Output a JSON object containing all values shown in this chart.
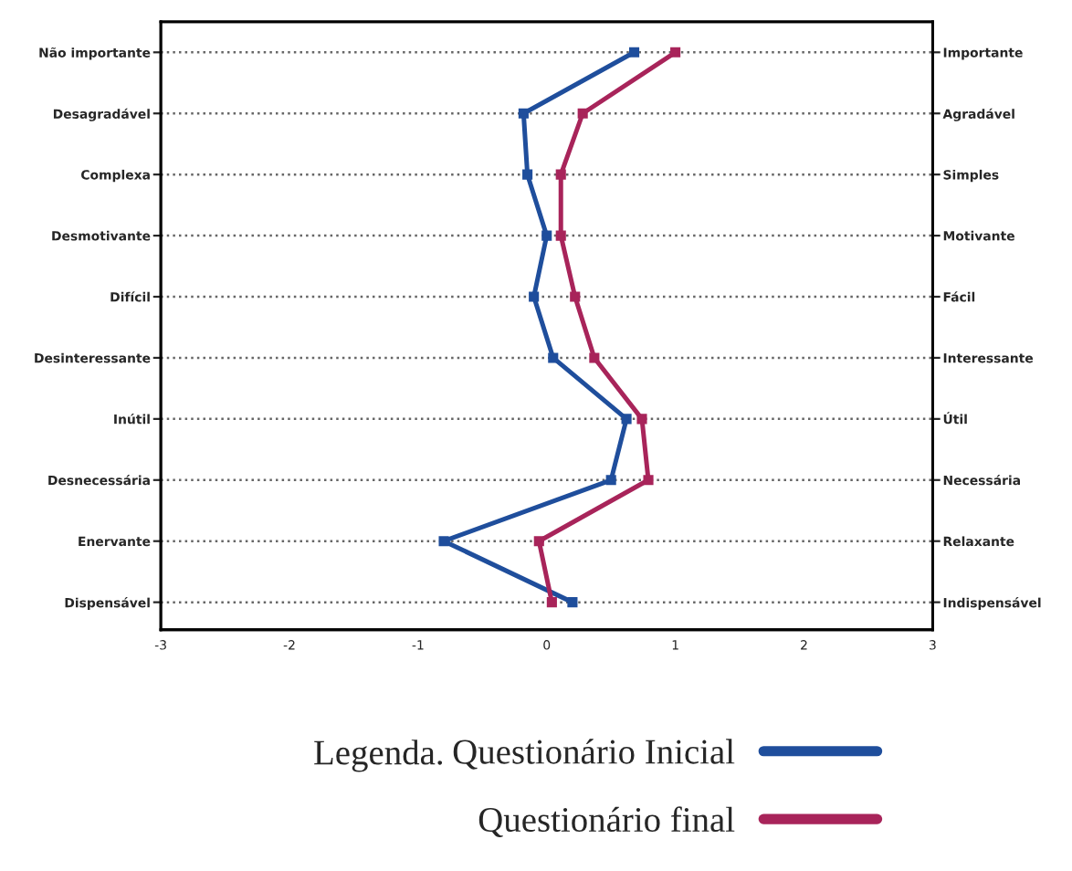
{
  "chart_data": {
    "type": "line",
    "orientation": "horizontal",
    "categories": [
      "Não importante",
      "Desagradável",
      "Complexa",
      "Desmotivante",
      "Difícil",
      "Desinteressante",
      "Inútil",
      "Desnecessária",
      "Enervante",
      "Dispensável"
    ],
    "y2_categories": [
      "Importante",
      "Agradável",
      "Simples",
      "Motivante",
      "Fácil",
      "Interessante",
      "Útil",
      "Necessária",
      "Relaxante",
      "Indispensável"
    ],
    "series": [
      {
        "name": "Questionário Inicial",
        "color": "#1f4e9c",
        "values": [
          0.68,
          -0.18,
          -0.15,
          0.0,
          -0.1,
          0.05,
          0.62,
          0.5,
          -0.8,
          0.2
        ]
      },
      {
        "name": "Questionário final",
        "color": "#a8245a",
        "values": [
          1.0,
          0.28,
          0.11,
          0.11,
          0.22,
          0.37,
          0.74,
          0.79,
          -0.06,
          0.04
        ]
      }
    ],
    "xlim": [
      -3,
      3
    ],
    "xticks": [
      -3,
      -2,
      -1,
      0,
      1,
      2,
      3
    ],
    "grid": "y",
    "marker": "square",
    "line_style": "solid",
    "legend": "bottom",
    "legend_title": "Legenda."
  }
}
